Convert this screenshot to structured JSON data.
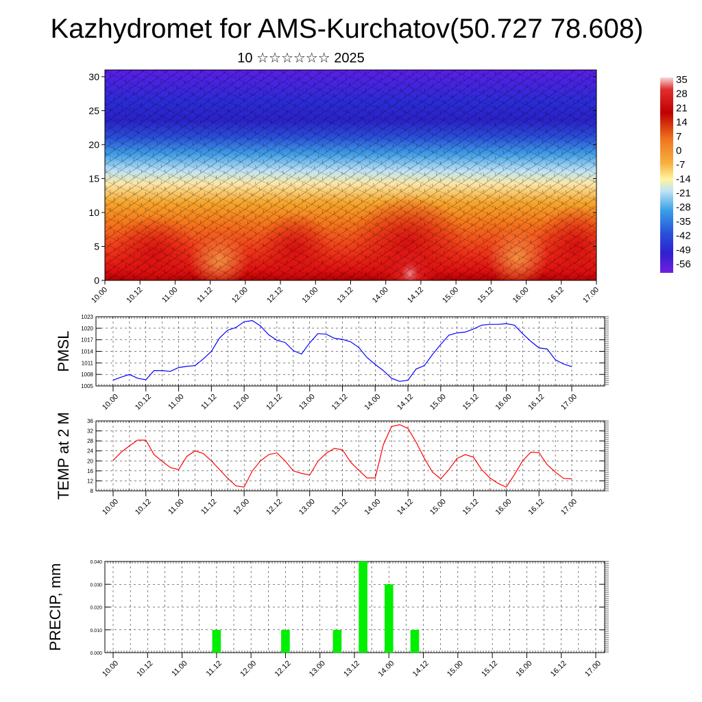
{
  "header": {
    "title": "Kazhydromet for AMS-Kurchatov(50.727 78.608)",
    "subtitle": "10 ☆☆☆☆☆☆ 2025"
  },
  "colorbar": {
    "labels": [
      "35",
      "28",
      "21",
      "14",
      "7",
      "0",
      "-7",
      "-14",
      "-21",
      "-28",
      "-35",
      "-42",
      "-49",
      "-56"
    ]
  },
  "colors": {
    "pmsl_line": "#0000ff",
    "temp_line": "#ff0000",
    "precip_bar": "#00ee00"
  },
  "chart_data": [
    {
      "type": "heatmap",
      "title": "",
      "x_ticks": [
        "10.00",
        "10.12",
        "11.00",
        "11.12",
        "12.00",
        "12.12",
        "13.00",
        "13.12",
        "14.00",
        "14.12",
        "15.00",
        "15.12",
        "16.00",
        "16.12",
        "17.00"
      ],
      "y_ticks": [
        "0",
        "5",
        "10",
        "15",
        "20",
        "25",
        "30"
      ],
      "ylim": [
        0,
        31
      ],
      "color_range": [
        -56,
        35
      ],
      "wind_barbs": true
    },
    {
      "type": "line",
      "ylabel": "PMSL",
      "ylim": [
        1005,
        1023
      ],
      "y_ticks": [
        "1005",
        "1008",
        "1011",
        "1014",
        "1017",
        "1020",
        "1023"
      ],
      "x_ticks": [
        "10.00",
        "10.12",
        "11.00",
        "11.12",
        "12.00",
        "12.12",
        "13.00",
        "13.12",
        "14.00",
        "14.12",
        "15.00",
        "15.12",
        "16.00",
        "16.12",
        "17.00"
      ],
      "series": [
        {
          "values": [
            1006.5,
            1007.3,
            1008.0,
            1007.0,
            1006.6,
            1009.0,
            1009.0,
            1008.8,
            1009.8,
            1010.1,
            1010.3,
            1012.0,
            1014.0,
            1017.5,
            1019.5,
            1020.2,
            1021.7,
            1022.0,
            1020.6,
            1018.3,
            1016.9,
            1016.3,
            1014.2,
            1013.3,
            1016.2,
            1018.6,
            1018.5,
            1017.4,
            1017.1,
            1016.5,
            1015.0,
            1012.4,
            1010.6,
            1009.0,
            1007.0,
            1006.2,
            1006.5,
            1009.4,
            1010.3,
            1013.2,
            1015.8,
            1018.2,
            1018.8,
            1019.0,
            1019.8,
            1020.8,
            1021.0,
            1021.0,
            1021.2,
            1020.8,
            1018.6,
            1016.6,
            1014.9,
            1014.6,
            1011.8,
            1010.7,
            1010.0
          ]
        }
      ]
    },
    {
      "type": "line",
      "ylabel": "TEMP at 2 M",
      "ylim": [
        8,
        36
      ],
      "y_ticks": [
        "8",
        "12",
        "16",
        "20",
        "24",
        "28",
        "32",
        "36"
      ],
      "x_ticks": [
        "10.00",
        "10.12",
        "11.00",
        "11.12",
        "12.00",
        "12.12",
        "13.00",
        "13.12",
        "14.00",
        "14.12",
        "15.00",
        "15.12",
        "16.00",
        "16.12",
        "17.00"
      ],
      "series": [
        {
          "values": [
            20.2,
            23.5,
            26.0,
            28.3,
            28.3,
            22.5,
            19.8,
            17.3,
            16.5,
            21.8,
            24.0,
            23.0,
            20.0,
            16.5,
            13.0,
            10.0,
            9.5,
            16.0,
            20.0,
            22.5,
            23.2,
            20.0,
            16.0,
            15.0,
            14.3,
            19.8,
            23.0,
            25.0,
            24.5,
            19.5,
            16.2,
            13.2,
            13.2,
            26.5,
            33.8,
            34.5,
            33.0,
            27.5,
            21.0,
            15.5,
            12.8,
            16.5,
            21.0,
            22.5,
            21.5,
            16.5,
            13.2,
            11.0,
            9.5,
            14.5,
            20.0,
            23.5,
            23.3,
            18.5,
            15.5,
            13.0,
            12.8
          ]
        }
      ]
    },
    {
      "type": "bar",
      "ylabel": "PRECIP, mm",
      "ylim": [
        0,
        0.04
      ],
      "y_ticks": [
        "0.000",
        "0.010",
        "0.020",
        "0.030",
        "0.040"
      ],
      "x_ticks": [
        "10.00",
        "10.12",
        "11.00",
        "11.12",
        "12.00",
        "12.12",
        "13.00",
        "13.12",
        "14.00",
        "14.12",
        "15.00",
        "15.12",
        "16.00",
        "16.12",
        "17.00"
      ],
      "bars": [
        {
          "x_hour": 36,
          "value": 0.01
        },
        {
          "x_hour": 60,
          "value": 0.01
        },
        {
          "x_hour": 78,
          "value": 0.01
        },
        {
          "x_hour": 87,
          "value": 0.04
        },
        {
          "x_hour": 96,
          "value": 0.03
        },
        {
          "x_hour": 105,
          "value": 0.01
        }
      ]
    }
  ]
}
